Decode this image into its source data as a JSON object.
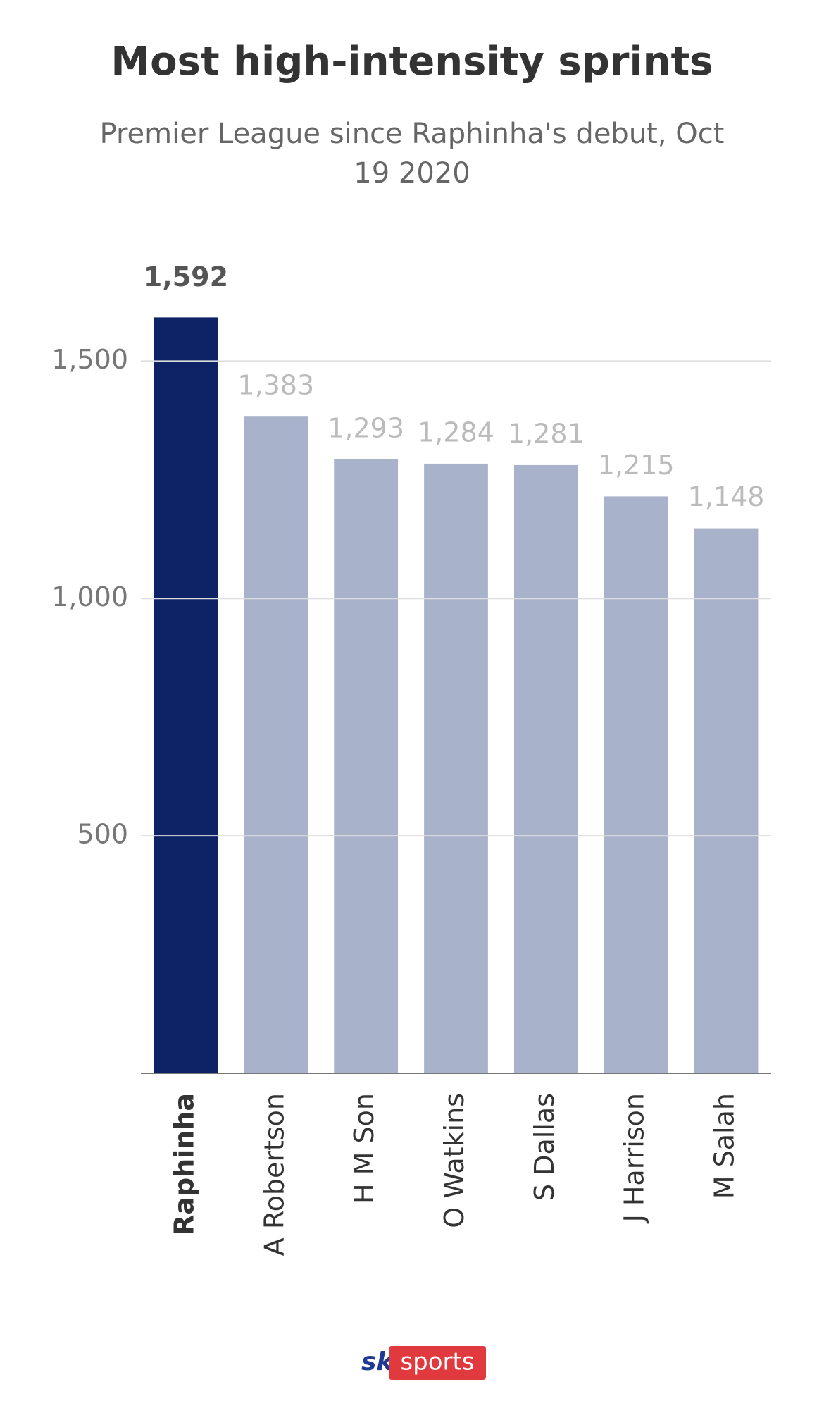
{
  "chart_data": {
    "type": "bar",
    "title": "Most high-intensity sprints",
    "subtitle": "Premier League since Raphinha's debut, Oct 19 2020",
    "categories": [
      "Raphinha",
      "A Robertson",
      "H M Son",
      "O Watkins",
      "S Dallas",
      "J Harrison",
      "M Salah"
    ],
    "values": [
      1592,
      1383,
      1293,
      1284,
      1281,
      1215,
      1148
    ],
    "value_labels": [
      "1,592",
      "1,383",
      "1,293",
      "1,284",
      "1,281",
      "1,215",
      "1,148"
    ],
    "colors": [
      "#0d2366",
      "#a8b2cb",
      "#a8b2cb",
      "#a8b2cb",
      "#a8b2cb",
      "#a8b2cb",
      "#a8b2cb"
    ],
    "bold": [
      true,
      false,
      false,
      false,
      false,
      false,
      false
    ],
    "ylim": [
      0,
      1600
    ],
    "yticks": [
      500,
      {
        "value": 1000,
        "label": "1,000"
      },
      {
        "value": 1500,
        "label": "1,500"
      }
    ],
    "grid": true
  },
  "logo": {
    "sky": "sky",
    "sports": "sports"
  }
}
